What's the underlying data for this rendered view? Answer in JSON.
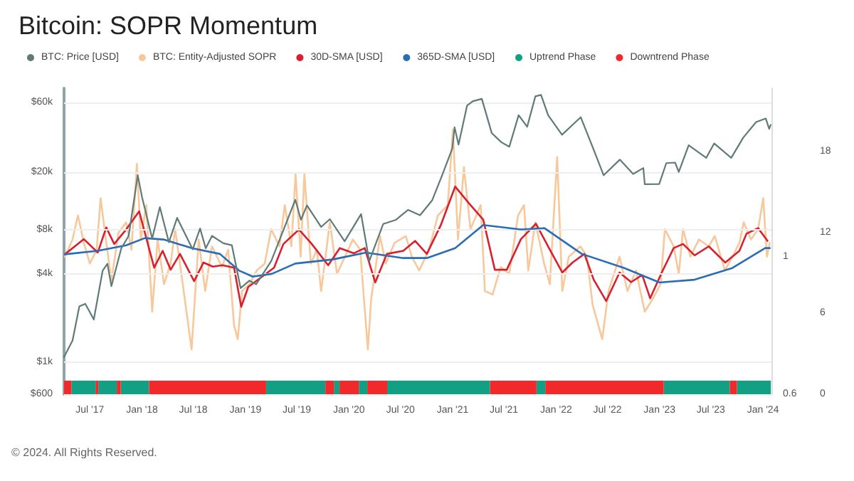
{
  "chart_data": {
    "type": "line",
    "title": "Bitcoin: SOPR Momentum",
    "legend": "top left",
    "grid": "y",
    "marker": "none",
    "line_style": "solid",
    "annotations": [
      "© 2024. All Rights Reserved."
    ],
    "log": "y",
    "xlim": [
      "2017-04-01",
      "2024-01-31"
    ],
    "xticks": [
      {
        "value": "2017-07-01",
        "label": "Jul '17"
      },
      {
        "value": "2018-01-01",
        "label": "Jan '18"
      },
      {
        "value": "2018-07-01",
        "label": "Jul '18"
      },
      {
        "value": "2019-01-01",
        "label": "Jan '19"
      },
      {
        "value": "2019-07-01",
        "label": "Jul '19"
      },
      {
        "value": "2020-01-01",
        "label": "Jan '20"
      },
      {
        "value": "2020-07-01",
        "label": "Jul '20"
      },
      {
        "value": "2021-01-01",
        "label": "Jan '21"
      },
      {
        "value": "2021-07-01",
        "label": "Jul '21"
      },
      {
        "value": "2022-01-01",
        "label": "Jan '22"
      },
      {
        "value": "2022-07-01",
        "label": "Jul '22"
      },
      {
        "value": "2023-01-01",
        "label": "Jan '23"
      },
      {
        "value": "2023-07-01",
        "label": "Jul '23"
      },
      {
        "value": "2024-01-01",
        "label": "Jan '24"
      }
    ],
    "ylim": [
      600,
      75000
    ],
    "yticks": [
      {
        "value": 600,
        "label": "$600"
      },
      {
        "value": 1000,
        "label": "$1k"
      },
      {
        "value": 4000,
        "label": "$4k"
      },
      {
        "value": 8000,
        "label": "$8k"
      },
      {
        "value": 20000,
        "label": "$20k"
      },
      {
        "value": 60000,
        "label": "$60k"
      }
    ],
    "y2lim": [
      0.6,
      1.49
    ],
    "y2ticks": [
      0.6,
      1
    ],
    "y3lim": [
      0,
      22.7
    ],
    "y3ticks": [
      0,
      6,
      12,
      18
    ],
    "series": [
      {
        "name": "BTC: Price [USD]",
        "color": "#5f7b78",
        "x": [
          "2017-04-01",
          "2017-05-01",
          "2017-05-25",
          "2017-06-15",
          "2017-07-15",
          "2017-08-15",
          "2017-09-01",
          "2017-09-15",
          "2017-10-20",
          "2017-11-15",
          "2017-12-17",
          "2018-01-01",
          "2018-02-06",
          "2018-03-05",
          "2018-04-06",
          "2018-05-05",
          "2018-06-29",
          "2018-07-25",
          "2018-08-14",
          "2018-09-05",
          "2018-10-15",
          "2018-11-14",
          "2018-12-15",
          "2019-01-15",
          "2019-02-08",
          "2019-04-02",
          "2019-05-15",
          "2019-06-26",
          "2019-07-16",
          "2019-08-06",
          "2019-09-25",
          "2019-10-26",
          "2019-12-17",
          "2020-02-13",
          "2020-03-13",
          "2020-05-01",
          "2020-06-15",
          "2020-07-28",
          "2020-09-08",
          "2020-10-21",
          "2020-11-25",
          "2020-12-31",
          "2021-01-08",
          "2021-01-22",
          "2021-02-21",
          "2021-03-13",
          "2021-04-14",
          "2021-05-19",
          "2021-06-22",
          "2021-07-20",
          "2021-08-22",
          "2021-09-21",
          "2021-10-20",
          "2021-11-09",
          "2021-12-04",
          "2022-01-22",
          "2022-03-29",
          "2022-05-12",
          "2022-06-18",
          "2022-08-14",
          "2022-09-30",
          "2022-11-05",
          "2022-11-10",
          "2022-12-31",
          "2023-01-25",
          "2023-02-25",
          "2023-03-10",
          "2023-04-14",
          "2023-06-15",
          "2023-07-13",
          "2023-09-11",
          "2023-10-24",
          "2023-12-08",
          "2024-01-11",
          "2024-01-23",
          "2024-01-28"
        ],
        "values": [
          1080,
          1400,
          2400,
          2500,
          1950,
          4200,
          4700,
          3300,
          6000,
          7300,
          19000,
          13500,
          7000,
          11500,
          6600,
          9700,
          5900,
          8200,
          6000,
          7300,
          6500,
          6300,
          3200,
          3600,
          3400,
          4900,
          8000,
          12900,
          9400,
          11800,
          8400,
          9500,
          6700,
          10300,
          4900,
          8800,
          9400,
          11000,
          10100,
          12800,
          19000,
          29000,
          40500,
          30800,
          57000,
          61000,
          63500,
          37000,
          32000,
          29800,
          49000,
          40800,
          66000,
          67500,
          49000,
          36000,
          47500,
          29000,
          19000,
          24300,
          19400,
          21300,
          16500,
          16550,
          23000,
          23200,
          20000,
          30500,
          25000,
          31400,
          25000,
          34500,
          44000,
          46500,
          39500,
          42000
        ]
      },
      {
        "name": "BTC: Entity-Adjusted SOPR",
        "color": "#f7c89b",
        "axis": "y2",
        "x": [
          "2017-04-04",
          "2017-05-01",
          "2017-05-20",
          "2017-06-10",
          "2017-07-01",
          "2017-07-25",
          "2017-08-08",
          "2017-08-25",
          "2017-09-15",
          "2017-10-10",
          "2017-11-06",
          "2017-11-25",
          "2017-12-14",
          "2017-12-28",
          "2018-01-16",
          "2018-02-06",
          "2018-02-25",
          "2018-03-20",
          "2018-04-12",
          "2018-04-28",
          "2018-05-20",
          "2018-06-25",
          "2018-07-20",
          "2018-08-12",
          "2018-09-05",
          "2018-10-10",
          "2018-11-01",
          "2018-11-22",
          "2018-12-05",
          "2018-12-20",
          "2019-01-15",
          "2019-02-10",
          "2019-03-10",
          "2019-04-02",
          "2019-05-01",
          "2019-05-20",
          "2019-06-12",
          "2019-06-27",
          "2019-07-15",
          "2019-07-28",
          "2019-08-20",
          "2019-09-10",
          "2019-09-25",
          "2019-10-26",
          "2019-11-20",
          "2019-12-18",
          "2020-01-15",
          "2020-02-10",
          "2020-03-08",
          "2020-03-20",
          "2020-04-20",
          "2020-05-10",
          "2020-06-10",
          "2020-07-20",
          "2020-08-10",
          "2020-09-05",
          "2020-10-10",
          "2020-11-10",
          "2020-12-15",
          "2021-01-02",
          "2021-01-20",
          "2021-02-10",
          "2021-03-05",
          "2021-04-10",
          "2021-04-25",
          "2021-05-22",
          "2021-06-20",
          "2021-07-20",
          "2021-08-20",
          "2021-09-10",
          "2021-09-25",
          "2021-10-20",
          "2021-11-20",
          "2021-12-10",
          "2022-01-05",
          "2022-01-23",
          "2022-02-15",
          "2022-03-28",
          "2022-04-20",
          "2022-05-10",
          "2022-06-13",
          "2022-07-05",
          "2022-08-13",
          "2022-09-10",
          "2022-10-10",
          "2022-11-10",
          "2022-12-10",
          "2023-01-05",
          "2023-01-20",
          "2023-02-20",
          "2023-03-10",
          "2023-03-25",
          "2023-04-20",
          "2023-05-20",
          "2023-06-24",
          "2023-07-15",
          "2023-08-20",
          "2023-09-15",
          "2023-10-10",
          "2023-10-25",
          "2023-11-20",
          "2023-12-15",
          "2024-01-02",
          "2024-01-15",
          "2024-01-25"
        ],
        "values": [
          1.0,
          1.05,
          1.12,
          1.04,
          0.98,
          1.02,
          1.17,
          1.06,
          0.93,
          1.07,
          1.1,
          1.02,
          1.27,
          1.05,
          1.15,
          0.84,
          1.05,
          0.92,
          0.98,
          1.08,
          0.95,
          0.73,
          1.05,
          0.9,
          1.03,
          0.97,
          1.02,
          0.8,
          0.76,
          0.9,
          0.92,
          0.96,
          0.98,
          1.08,
          1.03,
          1.15,
          1.03,
          1.24,
          1.0,
          1.24,
          0.98,
          1.02,
          0.9,
          1.1,
          0.95,
          1.0,
          1.05,
          1.02,
          0.73,
          0.88,
          1.06,
          0.98,
          1.04,
          1.06,
          1.0,
          0.96,
          1.02,
          1.12,
          1.15,
          1.37,
          1.05,
          1.26,
          1.08,
          1.15,
          0.9,
          0.89,
          0.97,
          0.95,
          1.12,
          1.15,
          0.96,
          1.1,
          0.98,
          0.92,
          1.29,
          0.9,
          1.0,
          1.03,
          1.0,
          0.86,
          0.76,
          0.9,
          1.0,
          0.9,
          0.96,
          0.84,
          0.88,
          0.92,
          1.08,
          1.03,
          0.95,
          1.08,
          1.0,
          1.05,
          1.03,
          1.06,
          0.96,
          1.0,
          1.04,
          1.1,
          1.05,
          1.08,
          1.17,
          1.0,
          1.04
        ]
      },
      {
        "name": "30D-SMA [USD]",
        "color": "#d9202f",
        "axis": "y2",
        "x": [
          "2017-04-04",
          "2017-06-10",
          "2017-07-29",
          "2017-08-28",
          "2017-09-25",
          "2017-11-06",
          "2017-12-22",
          "2018-02-13",
          "2018-03-15",
          "2018-04-12",
          "2018-05-15",
          "2018-07-04",
          "2018-08-06",
          "2018-09-08",
          "2018-10-12",
          "2018-11-22",
          "2018-12-17",
          "2019-01-11",
          "2019-03-01",
          "2019-04-12",
          "2019-05-15",
          "2019-07-09",
          "2019-08-23",
          "2019-10-20",
          "2019-11-30",
          "2020-01-19",
          "2020-02-26",
          "2020-04-03",
          "2020-05-14",
          "2020-07-11",
          "2020-08-22",
          "2020-10-02",
          "2020-11-21",
          "2021-01-10",
          "2021-02-28",
          "2021-04-19",
          "2021-05-30",
          "2021-07-11",
          "2021-08-30",
          "2021-10-22",
          "2021-12-07",
          "2022-01-23",
          "2022-02-28",
          "2022-04-11",
          "2022-05-14",
          "2022-06-27",
          "2022-08-13",
          "2022-09-23",
          "2022-11-01",
          "2022-11-29",
          "2023-01-09",
          "2023-02-20",
          "2023-03-25",
          "2023-05-05",
          "2023-06-24",
          "2023-08-21",
          "2023-10-10",
          "2023-11-04",
          "2023-12-15",
          "2024-01-17"
        ],
        "values": [
          1.007,
          1.051,
          1.012,
          1.085,
          1.037,
          1.079,
          1.132,
          0.968,
          1.017,
          0.962,
          1.008,
          0.929,
          0.983,
          0.971,
          0.975,
          0.968,
          0.854,
          0.912,
          0.942,
          0.968,
          1.037,
          1.079,
          1.037,
          0.975,
          1.025,
          1.01,
          1.025,
          0.925,
          1.008,
          1.017,
          1.046,
          1.008,
          1.093,
          1.204,
          1.155,
          1.108,
          0.962,
          0.962,
          1.051,
          1.096,
          1.025,
          0.954,
          0.983,
          1.008,
          0.933,
          0.871,
          0.954,
          0.926,
          0.947,
          0.879,
          0.954,
          1.025,
          1.037,
          1.004,
          1.03,
          0.983,
          1.017,
          1.067,
          1.083,
          1.046
        ]
      },
      {
        "name": "365D-SMA [USD]",
        "color": "#2a6db5",
        "axis": "y2",
        "x": [
          "2017-04-04",
          "2017-07-29",
          "2017-11-06",
          "2018-01-11",
          "2018-03-18",
          "2018-06-26",
          "2018-10-03",
          "2018-12-09",
          "2019-01-27",
          "2019-04-04",
          "2019-06-26",
          "2019-11-05",
          "2020-03-01",
          "2020-07-11",
          "2020-10-02",
          "2021-01-10",
          "2021-04-19",
          "2021-08-30",
          "2021-11-21",
          "2022-04-02",
          "2022-08-30",
          "2023-01-01",
          "2023-05-05",
          "2023-09-15",
          "2024-01-09",
          "2024-01-25"
        ],
        "values": [
          1.007,
          1.017,
          1.033,
          1.054,
          1.05,
          1.025,
          1.008,
          0.96,
          0.942,
          0.95,
          0.98,
          0.992,
          1.012,
          0.996,
          0.996,
          1.025,
          1.092,
          1.079,
          1.083,
          1.008,
          0.967,
          0.925,
          0.933,
          0.967,
          1.025,
          1.025
        ]
      },
      {
        "name": "Uptrend Phase",
        "color": "#12a085",
        "type": "area",
        "axis": "y3",
        "x": [
          "2017-04-27",
          "2017-07-21",
          "2017-07-21",
          "2017-07-31",
          "2017-07-31",
          "2017-10-04",
          "2017-10-04",
          "2017-10-18",
          "2017-10-18",
          "2018-01-26",
          "2018-01-26",
          "2019-03-15",
          "2019-03-15",
          "2019-10-10",
          "2019-10-10",
          "2019-11-09",
          "2019-11-09",
          "2019-11-29",
          "2019-11-29",
          "2020-02-05",
          "2020-02-05",
          "2020-03-06",
          "2020-03-06",
          "2020-05-15",
          "2020-05-15",
          "2021-05-13",
          "2021-05-13",
          "2021-10-24",
          "2021-10-24",
          "2021-11-24",
          "2021-11-24",
          "2023-01-16",
          "2023-01-16",
          "2023-09-06",
          "2023-09-06",
          "2023-10-01",
          "2023-10-01",
          "2024-01-29"
        ],
        "values": [
          1,
          1,
          0,
          0,
          1,
          1,
          0,
          0,
          1,
          1,
          0,
          0,
          1,
          1,
          0,
          0,
          1,
          1,
          0,
          0,
          1,
          1,
          0,
          0,
          1,
          1,
          0,
          0,
          1,
          1,
          0,
          0,
          1,
          1,
          0,
          0,
          1,
          1
        ]
      },
      {
        "name": "Downtrend Phase",
        "color": "#f2292a",
        "type": "area",
        "axis": "y3",
        "x": [
          "2017-04-01",
          "2017-04-27",
          "2017-04-27",
          "2017-07-21",
          "2017-07-21",
          "2017-07-31",
          "2017-07-31",
          "2017-10-04",
          "2017-10-04",
          "2017-10-18",
          "2017-10-18",
          "2018-01-26",
          "2018-01-26",
          "2019-03-15",
          "2019-03-15",
          "2019-10-10",
          "2019-10-10",
          "2019-11-09",
          "2019-11-09",
          "2019-11-29",
          "2019-11-29",
          "2020-02-05",
          "2020-02-05",
          "2020-03-06",
          "2020-03-06",
          "2020-05-15",
          "2020-05-15",
          "2021-05-13",
          "2021-05-13",
          "2021-10-24",
          "2021-10-24",
          "2021-11-24",
          "2021-11-24",
          "2023-01-16",
          "2023-01-16",
          "2023-09-06",
          "2023-09-06",
          "2023-10-01"
        ],
        "values": [
          1,
          1,
          0,
          0,
          1,
          1,
          0,
          0,
          1,
          1,
          0,
          0,
          1,
          1,
          0,
          0,
          1,
          1,
          0,
          0,
          1,
          1,
          0,
          0,
          1,
          1,
          0,
          0,
          1,
          1,
          0,
          0,
          1,
          1,
          0,
          0,
          1,
          1
        ]
      }
    ]
  }
}
